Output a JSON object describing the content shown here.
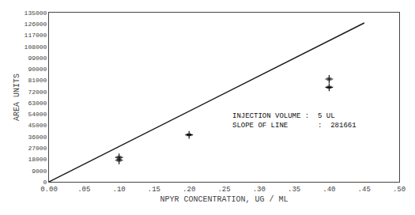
{
  "chart_data": {
    "type": "scatter",
    "xlabel": "NPYR CONCENTRATION, UG / ML",
    "ylabel": "AREA UNITS",
    "xlim": [
      0.0,
      0.5
    ],
    "ylim": [
      0,
      135000
    ],
    "xticks": [
      {
        "value": 0.0,
        "label": "0.00"
      },
      {
        "value": 0.05,
        "label": ".05"
      },
      {
        "value": 0.1,
        "label": ".10"
      },
      {
        "value": 0.15,
        "label": ".15"
      },
      {
        "value": 0.2,
        "label": ".20"
      },
      {
        "value": 0.25,
        "label": ".25"
      },
      {
        "value": 0.3,
        "label": ".30"
      },
      {
        "value": 0.35,
        "label": ".35"
      },
      {
        "value": 0.4,
        "label": ".40"
      },
      {
        "value": 0.45,
        "label": ".45"
      },
      {
        "value": 0.5,
        "label": ".50"
      }
    ],
    "yticks": [
      0,
      9000,
      18000,
      27000,
      36000,
      45000,
      54000,
      63000,
      72000,
      81000,
      90000,
      99000,
      108000,
      117000,
      126000,
      135000
    ],
    "grid": false,
    "series": [
      {
        "type": "line",
        "color": "#1a1a1a",
        "line_style": "solid",
        "x": [
          0.0,
          0.4502
        ],
        "values": [
          0,
          126803.7822
        ]
      },
      {
        "type": "scatter",
        "color": "#111111",
        "marker": "plus",
        "x": [
          0.1,
          0.1,
          0.2,
          0.4,
          0.4
        ],
        "values": [
          19500,
          17200,
          37500,
          82000,
          75500
        ],
        "errors": [
          700,
          700,
          700,
          700,
          700
        ]
      }
    ],
    "annotations": [
      "INJECTION VOLUME :  5 UL",
      "SLOPE OF LINE       :  281661"
    ]
  }
}
